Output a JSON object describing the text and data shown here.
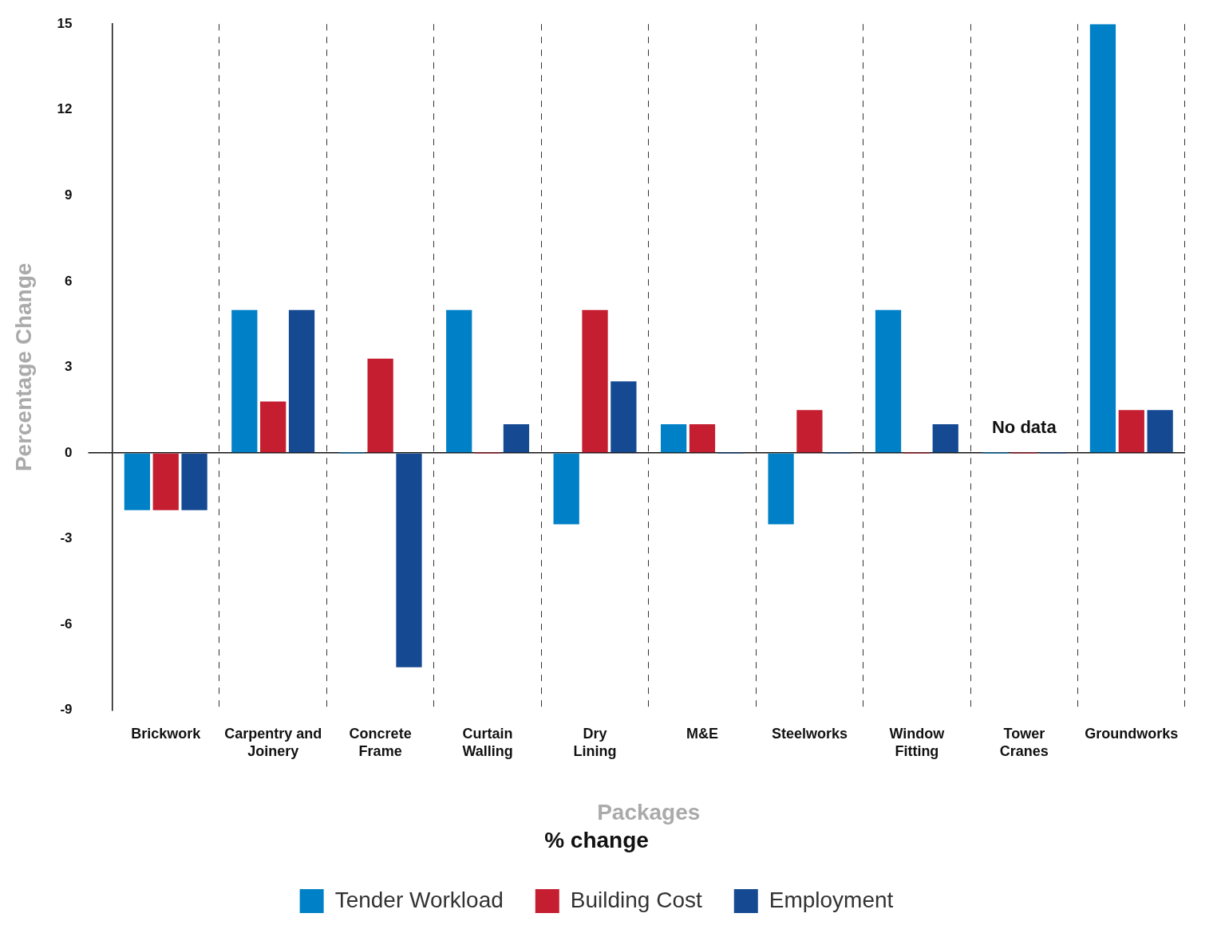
{
  "chart_data": {
    "type": "bar",
    "xlabel": "Packages",
    "ylabel": "Percentage Change",
    "legend_title": "% change",
    "categories": [
      "Brickwork",
      "Carpentry and Joinery",
      "Concrete Frame",
      "Curtain Walling",
      "Dry Lining",
      "M&E",
      "Steelworks",
      "Window Fitting",
      "Tower Cranes",
      "Groundworks"
    ],
    "series": [
      {
        "name": "Tender Workload",
        "color": "#0080c6",
        "values": [
          -2,
          5,
          0,
          5,
          -2.5,
          1,
          -2.5,
          5,
          0,
          15
        ]
      },
      {
        "name": "Building Cost",
        "color": "#c41e30",
        "values": [
          -2,
          1.8,
          3.3,
          0,
          5,
          1,
          1.5,
          0,
          0,
          1.5
        ]
      },
      {
        "name": "Employment",
        "color": "#154a93",
        "values": [
          -2,
          5,
          -7.5,
          1,
          2.5,
          0,
          0,
          1,
          0,
          1.5
        ]
      }
    ],
    "annotations": [
      {
        "text": "No data",
        "x": "Tower Cranes",
        "y": 0
      }
    ],
    "ylim": [
      -9,
      15
    ],
    "yticks": [
      -9,
      -6,
      -3,
      0,
      3,
      6,
      9,
      12,
      15
    ],
    "grid": "x",
    "legend": "bottom"
  }
}
